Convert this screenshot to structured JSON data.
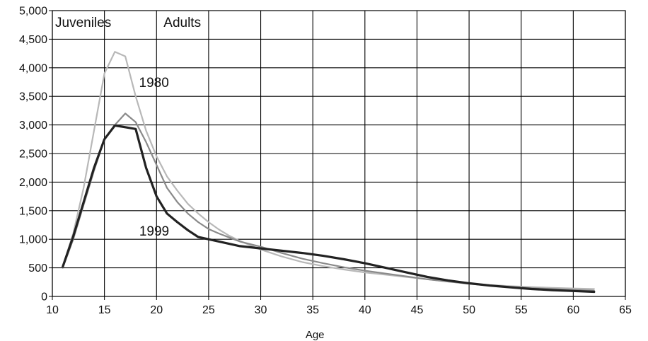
{
  "chart_data": {
    "type": "line",
    "title": "",
    "xlabel": "Age",
    "ylabel": "",
    "xlim": [
      10,
      65
    ],
    "ylim": [
      0,
      5000
    ],
    "x_ticks": [
      "10",
      "15",
      "20",
      "25",
      "30",
      "35",
      "40",
      "45",
      "50",
      "55",
      "60",
      "65"
    ],
    "y_ticks": [
      "0",
      "500",
      "1,000",
      "1,500",
      "2,000",
      "2,500",
      "3,000",
      "3,500",
      "4,000",
      "4,500",
      "5,000"
    ],
    "grid": true,
    "legend": "none",
    "annotations": {
      "juveniles": "Juveniles",
      "adults": "Adults",
      "label_1980": "1980",
      "label_1999": "1999"
    },
    "series": [
      {
        "name": "1980",
        "color": "#b8b8b8",
        "x": [
          11,
          12,
          13,
          14,
          15,
          16,
          17,
          18,
          19,
          20,
          21,
          22,
          23,
          24,
          25,
          26,
          27,
          28,
          30,
          32,
          34,
          36,
          38,
          40,
          42,
          44,
          46,
          48,
          50,
          52,
          54,
          56,
          58,
          60,
          62
        ],
        "y": [
          520,
          1100,
          1900,
          2900,
          3900,
          4280,
          4200,
          3500,
          2900,
          2450,
          2100,
          1850,
          1620,
          1450,
          1300,
          1170,
          1060,
          970,
          820,
          700,
          600,
          530,
          470,
          420,
          380,
          340,
          300,
          260,
          225,
          200,
          180,
          165,
          150,
          140,
          130
        ]
      },
      {
        "name": "",
        "color": "#8a8a8a",
        "x": [
          11,
          12,
          13,
          14,
          15,
          16,
          17,
          18,
          19,
          20,
          21,
          22,
          23,
          24,
          25,
          26,
          27,
          28,
          30,
          32,
          34,
          36,
          38,
          40,
          42,
          44,
          46,
          48,
          50,
          52,
          54,
          56,
          58,
          60,
          62
        ],
        "y": [
          500,
          1000,
          1600,
          2200,
          2750,
          3000,
          3200,
          3050,
          2700,
          2300,
          1900,
          1650,
          1450,
          1300,
          1180,
          1100,
          1030,
          960,
          870,
          760,
          660,
          580,
          510,
          450,
          400,
          350,
          300,
          260,
          220,
          190,
          165,
          145,
          130,
          115,
          100
        ]
      },
      {
        "name": "1999",
        "color": "#222222",
        "x": [
          11,
          12,
          13,
          14,
          15,
          16,
          17,
          18,
          19,
          20,
          21,
          22,
          23,
          24,
          25,
          26,
          27,
          28,
          30,
          32,
          34,
          36,
          38,
          40,
          42,
          44,
          46,
          48,
          50,
          52,
          54,
          56,
          58,
          60,
          62
        ],
        "y": [
          520,
          1050,
          1650,
          2250,
          2750,
          2990,
          2960,
          2930,
          2250,
          1750,
          1450,
          1300,
          1160,
          1040,
          1000,
          960,
          920,
          880,
          840,
          800,
          760,
          710,
          650,
          580,
          500,
          420,
          340,
          280,
          230,
          190,
          160,
          130,
          110,
          95,
          80
        ]
      }
    ]
  }
}
